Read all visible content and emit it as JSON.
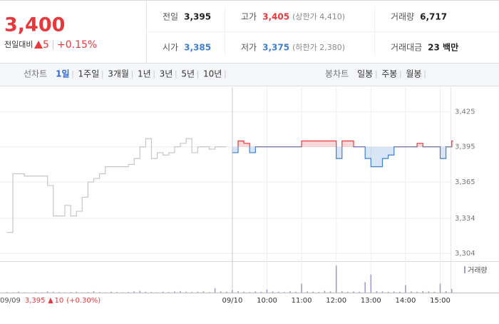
{
  "quote": {
    "price": "3,400",
    "change_label": "전일대비",
    "change": "5",
    "change_pct": "+0.15%"
  },
  "stats": [
    [
      {
        "label": "전일",
        "value": "3,395"
      },
      {
        "label": "고가",
        "value": "3,405",
        "note": "(상한가 4,410)"
      },
      {
        "label": "거래량",
        "value": "6,717"
      }
    ],
    [
      {
        "label": "시가",
        "value": "3,385"
      },
      {
        "label": "저가",
        "value": "3,375",
        "note": "(하한가 2,380)"
      },
      {
        "label": "거래대금",
        "value": "23 백만"
      }
    ]
  ],
  "tabs": {
    "line_label": "선차트",
    "line": [
      "1일",
      "1주일",
      "3개월",
      "1년",
      "3년",
      "5년",
      "10년"
    ],
    "candle_label": "봉차트",
    "candle": [
      "일봉",
      "주봉",
      "월봉"
    ]
  },
  "footer": {
    "date": "09/09",
    "price": "3,395",
    "change": "10",
    "pct": "(+0.30%)"
  },
  "chart_data": {
    "type": "line",
    "categories": [
      null,
      null,
      null,
      null,
      null,
      null,
      null,
      null,
      null,
      null,
      null,
      null,
      null,
      null,
      null,
      null,
      null,
      null,
      null,
      null,
      null,
      null,
      null,
      null,
      null,
      null,
      null,
      null,
      null,
      null,
      null,
      null,
      null,
      null,
      null,
      null,
      null,
      null,
      null,
      "09/10",
      null,
      null,
      null,
      null,
      null,
      "10:00",
      null,
      null,
      null,
      null,
      null,
      "11:00",
      null,
      null,
      null,
      null,
      null,
      "12:00",
      null,
      null,
      null,
      null,
      null,
      "13:00",
      null,
      null,
      null,
      null,
      null,
      "14:00",
      null,
      null,
      null,
      null,
      null,
      "15:00",
      null,
      null
    ],
    "ylim": [
      3298,
      3446
    ],
    "yticks": [
      {
        "value": 3304,
        "label": "3,304"
      },
      {
        "value": 3334,
        "label": "3,334"
      },
      {
        "value": 3365,
        "label": "3,365"
      },
      {
        "value": 3395,
        "label": "3,395"
      },
      {
        "value": 3425,
        "label": "3,425"
      }
    ],
    "base": 3395,
    "up_color": "#e8383b",
    "down_color": "#3e7fd4",
    "grid": true,
    "series": [
      {
        "color": "#c4c6ca",
        "values": [
          3322,
          3372,
          3372,
          3370,
          3370,
          3370,
          3370,
          3362,
          3336,
          3336,
          3345,
          3336,
          3340,
          3352,
          3365,
          3368,
          3372,
          3378,
          3378,
          3378,
          3378,
          3380,
          3385,
          3395,
          3402,
          3385,
          3390,
          3388,
          3390,
          3395,
          3398,
          3402,
          3390,
          3395,
          3395,
          3393,
          3395,
          3395,
          3395,
          null,
          null,
          null,
          null,
          null,
          null,
          null,
          null,
          null,
          null,
          null,
          null,
          null,
          null,
          null,
          null,
          null,
          null,
          null,
          null,
          null,
          null,
          null,
          null,
          null,
          null,
          null,
          null,
          null,
          null,
          null,
          null,
          null,
          null,
          null,
          null,
          null,
          null,
          null
        ]
      },
      {
        "color": "#e8383b",
        "values": [
          null,
          null,
          null,
          null,
          null,
          null,
          null,
          null,
          null,
          null,
          null,
          null,
          null,
          null,
          null,
          null,
          null,
          null,
          null,
          null,
          null,
          null,
          null,
          null,
          null,
          null,
          null,
          null,
          null,
          null,
          null,
          null,
          null,
          null,
          null,
          null,
          null,
          null,
          null,
          3390,
          3400,
          3398,
          3390,
          3395,
          3395,
          3395,
          3395,
          3395,
          3395,
          3395,
          3395,
          3400,
          3400,
          3400,
          3400,
          3400,
          3400,
          3385,
          3400,
          3400,
          3395,
          3395,
          3385,
          3378,
          3378,
          3385,
          3388,
          3395,
          3395,
          3395,
          3395,
          3398,
          3395,
          3395,
          3395,
          3385,
          3395,
          3400
        ]
      }
    ],
    "volume": {
      "name": "거래량",
      "color": "#a49ccc",
      "ylim": [
        0,
        100
      ],
      "values": [
        2,
        1,
        3,
        1,
        0,
        2,
        1,
        4,
        3,
        2,
        1,
        2,
        3,
        1,
        2,
        5,
        2,
        1,
        3,
        2,
        1,
        2,
        4,
        6,
        3,
        2,
        1,
        3,
        2,
        4,
        5,
        3,
        2,
        3,
        4,
        2,
        15,
        4,
        3,
        8,
        5,
        3,
        2,
        4,
        3,
        10,
        4,
        3,
        2,
        5,
        3,
        30,
        4,
        3,
        2,
        6,
        4,
        90,
        5,
        3,
        4,
        3,
        35,
        60,
        5,
        4,
        3,
        4,
        3,
        25,
        4,
        3,
        5,
        4,
        3,
        30,
        5,
        12
      ]
    }
  }
}
